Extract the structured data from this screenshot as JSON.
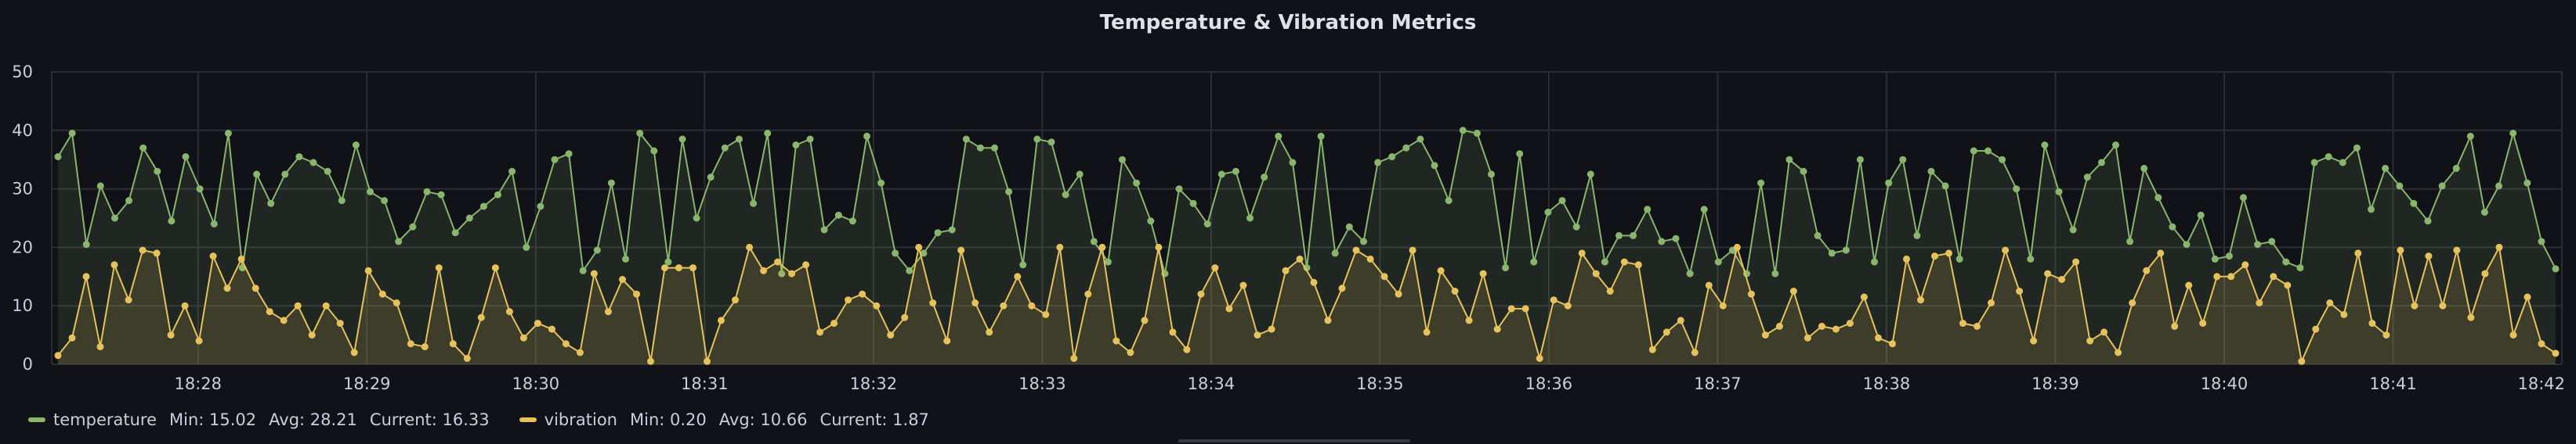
{
  "chart_data": {
    "type": "line",
    "title": "Temperature & Vibration Metrics",
    "xlabel": "",
    "ylabel": "",
    "ylim": [
      0,
      50
    ],
    "yticks": [
      "0",
      "10",
      "20",
      "30",
      "40",
      "50"
    ],
    "xlim": [
      "18:27:08",
      "18:42:00"
    ],
    "xticks": [
      "18:28",
      "18:29",
      "18:30",
      "18:31",
      "18:32",
      "18:33",
      "18:34",
      "18:35",
      "18:36",
      "18:37",
      "18:38",
      "18:39",
      "18:40",
      "18:41",
      "18:42"
    ],
    "grid": true,
    "legend_position": "bottom-left",
    "series": [
      {
        "name": "temperature",
        "color": "#8ab56d",
        "stats": {
          "min": "Min: 15.02",
          "avg": "Avg: 28.21",
          "current": "Current: 16.33"
        },
        "values": [
          35.5,
          39.5,
          20.5,
          30.5,
          25.0,
          28.0,
          37.0,
          33.0,
          24.5,
          35.5,
          30.0,
          24.0,
          39.5,
          16.5,
          32.5,
          27.5,
          32.5,
          35.5,
          34.5,
          33.0,
          28.0,
          37.5,
          29.5,
          28.0,
          21.0,
          23.5,
          29.5,
          29.0,
          22.5,
          25.0,
          27.0,
          29.0,
          33.0,
          20.0,
          27.0,
          35.0,
          36.0,
          16.0,
          19.5,
          31.0,
          18.0,
          39.5,
          36.5,
          17.5,
          38.5,
          25.0,
          32.0,
          37.0,
          38.5,
          27.5,
          39.5,
          15.5,
          37.5,
          38.5,
          23.0,
          25.5,
          24.5,
          39.0,
          31.0,
          19.0,
          16.0,
          19.0,
          22.5,
          23.0,
          38.5,
          37.0,
          37.0,
          29.5,
          17.0,
          38.5,
          38.0,
          29.0,
          32.5,
          21.0,
          17.5,
          35.0,
          31.0,
          24.5,
          15.5,
          30.0,
          27.5,
          24.0,
          32.5,
          33.0,
          25.0,
          32.0,
          39.0,
          34.5,
          16.5,
          39.0,
          19.0,
          23.5,
          21.0,
          34.5,
          35.5,
          37.0,
          38.5,
          34.0,
          28.0,
          40.0,
          39.5,
          32.5,
          16.5,
          36.0,
          17.5,
          26.0,
          28.0,
          23.5,
          32.5,
          17.5,
          22.0,
          22.0,
          26.5,
          21.0,
          21.5,
          15.5,
          26.5,
          17.5,
          19.5,
          15.5,
          31.0,
          15.5,
          35.0,
          33.0,
          22.0,
          19.0,
          19.5,
          35.0,
          17.5,
          31.0,
          35.0,
          22.0,
          33.0,
          30.5,
          18.0,
          36.5,
          36.5,
          35.0,
          30.0,
          18.0,
          37.5,
          29.5,
          23.0,
          32.0,
          34.5,
          37.5,
          21.0,
          33.5,
          28.5,
          23.5,
          20.5,
          25.5,
          18.0,
          18.5,
          28.5,
          20.5,
          21.0,
          17.5,
          16.5,
          34.5,
          35.5,
          34.5,
          37.0,
          26.5,
          33.5,
          30.5,
          27.5,
          24.5,
          30.5,
          33.5,
          39.0,
          26.0,
          30.5,
          39.5,
          31.0,
          21.0,
          16.33
        ],
        "fill": "rgba(138,181,109,0.13)"
      },
      {
        "name": "vibration",
        "color": "#e5c25c",
        "stats": {
          "min": "Min: 0.20",
          "avg": "Avg: 10.66",
          "current": "Current: 1.87"
        },
        "values": [
          1.5,
          4.5,
          15.0,
          3.0,
          17.0,
          11.0,
          19.5,
          19.0,
          5.0,
          10.0,
          4.0,
          18.5,
          13.0,
          18.0,
          13.0,
          9.0,
          7.5,
          10.0,
          5.0,
          10.0,
          7.0,
          2.0,
          16.0,
          12.0,
          10.5,
          3.5,
          3.0,
          16.5,
          3.5,
          1.0,
          8.0,
          16.5,
          9.0,
          4.5,
          7.0,
          6.0,
          3.5,
          2.0,
          15.5,
          9.0,
          14.5,
          12.0,
          0.5,
          16.5,
          16.5,
          16.5,
          0.5,
          7.5,
          11.0,
          20.0,
          16.0,
          17.5,
          15.5,
          17.0,
          5.5,
          7.0,
          11.0,
          12.0,
          10.0,
          5.0,
          8.0,
          20.0,
          10.5,
          4.0,
          19.5,
          10.5,
          5.5,
          10.0,
          15.0,
          10.0,
          8.5,
          20.0,
          1.0,
          12.0,
          20.0,
          4.0,
          2.0,
          7.5,
          20.0,
          5.5,
          2.5,
          12.0,
          16.5,
          9.5,
          13.5,
          5.0,
          6.0,
          16.0,
          18.0,
          14.0,
          7.5,
          13.0,
          19.5,
          18.0,
          15.0,
          12.0,
          19.5,
          5.5,
          16.0,
          12.5,
          7.5,
          15.5,
          6.0,
          9.5,
          9.5,
          1.0,
          11.0,
          10.0,
          19.0,
          15.5,
          12.5,
          17.5,
          17.0,
          2.5,
          5.5,
          7.5,
          2.0,
          13.5,
          10.0,
          20.0,
          12.0,
          5.0,
          6.5,
          12.5,
          4.5,
          6.5,
          6.0,
          7.0,
          11.5,
          4.5,
          3.5,
          18.0,
          11.0,
          18.5,
          19.0,
          7.0,
          6.5,
          10.5,
          19.5,
          12.5,
          4.0,
          15.5,
          14.5,
          17.5,
          4.0,
          5.5,
          2.0,
          10.5,
          16.0,
          19.0,
          6.5,
          13.5,
          7.0,
          15.0,
          15.0,
          17.0,
          10.5,
          15.0,
          13.5,
          0.5,
          6.0,
          10.5,
          8.5,
          19.0,
          7.0,
          5.0,
          19.5,
          10.0,
          18.5,
          10.0,
          19.5,
          8.0,
          15.5,
          20.0,
          5.0,
          11.5,
          3.5,
          1.87
        ],
        "fill": "rgba(229,194,92,0.15)"
      }
    ]
  }
}
